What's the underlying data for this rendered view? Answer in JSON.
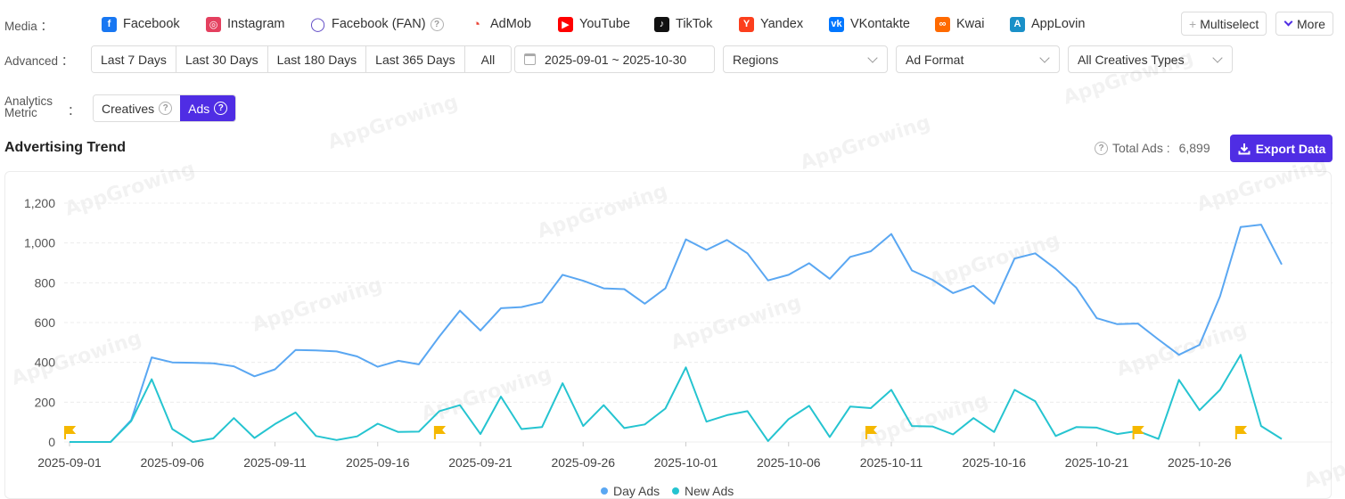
{
  "filters": {
    "media_label": "Media",
    "advanced_label": "Advanced",
    "metric_label_line1": "Analytics",
    "metric_label_line2": "Metric",
    "colon": "：",
    "media": [
      {
        "label": "Facebook",
        "icon": "facebook-icon",
        "color": "#1877f2",
        "glyph": "f"
      },
      {
        "label": "Instagram",
        "icon": "instagram-icon",
        "color": "#e4405f",
        "glyph": "◎"
      },
      {
        "label": "Facebook (FAN)",
        "icon": "facebook-fan-icon",
        "color": "#5b45c4",
        "glyph": "◯"
      },
      {
        "label": "AdMob",
        "icon": "admob-icon",
        "color": "#ea4335",
        "glyph": "◔"
      },
      {
        "label": "YouTube",
        "icon": "youtube-icon",
        "color": "#ff0000",
        "glyph": "▶"
      },
      {
        "label": "TikTok",
        "icon": "tiktok-icon",
        "color": "#111111",
        "glyph": "♪"
      },
      {
        "label": "Yandex",
        "icon": "yandex-icon",
        "color": "#fc3f1d",
        "glyph": "Y"
      },
      {
        "label": "VKontakte",
        "icon": "vkontakte-icon",
        "color": "#0077ff",
        "glyph": "vk"
      },
      {
        "label": "Kwai",
        "icon": "kwai-icon",
        "color": "#ff6a00",
        "glyph": "∞"
      },
      {
        "label": "AppLovin",
        "icon": "applovin-icon",
        "color": "#1a90c8",
        "glyph": "A"
      }
    ],
    "multiselect_label": "Multiselect",
    "more_label": "More",
    "date_ranges": [
      "Last 7 Days",
      "Last 30 Days",
      "Last 180 Days",
      "Last 365 Days",
      "All"
    ],
    "date_picker_value": "2025-09-01 ~ 2025-10-30",
    "regions_placeholder": "Regions",
    "ad_format_placeholder": "Ad Format",
    "creative_types_value": "All Creatives Types",
    "metrics": [
      {
        "label": "Creatives",
        "active": false
      },
      {
        "label": "Ads",
        "active": true
      }
    ]
  },
  "section": {
    "title": "Advertising Trend",
    "total_label": "Total Ads :",
    "total_value": "6,899",
    "export_label": "Export Data"
  },
  "colors": {
    "accent": "#4f2de4",
    "day_ads": "#5aa7f2",
    "new_ads": "#25c4d0",
    "flag": "#f5b800"
  },
  "chart_data": {
    "type": "line",
    "ylim": [
      0,
      1200
    ],
    "yticks": [
      0,
      200,
      400,
      600,
      800,
      1000,
      1200
    ],
    "ytick_labels": [
      "0",
      "200",
      "400",
      "600",
      "800",
      "1,000",
      "1,200"
    ],
    "x_tick_labels": [
      "2025-09-01",
      "2025-09-06",
      "2025-09-11",
      "2025-09-16",
      "2025-09-21",
      "2025-09-26",
      "2025-10-01",
      "2025-10-06",
      "2025-10-11",
      "2025-10-16",
      "2025-10-21",
      "2025-10-26"
    ],
    "legend_position": "bottom",
    "series": [
      {
        "name": "Day Ads",
        "values": [
          0,
          0,
          0,
          110,
          425,
          400,
          398,
          395,
          380,
          330,
          365,
          462,
          460,
          455,
          430,
          378,
          408,
          390,
          530,
          660,
          560,
          672,
          678,
          702,
          840,
          810,
          772,
          768,
          695,
          772,
          1018,
          965,
          1015,
          948,
          812,
          840,
          898,
          820,
          930,
          958,
          1045,
          862,
          815,
          748,
          785,
          695,
          922,
          948,
          870,
          775,
          622,
          592,
          595,
          515,
          438,
          488,
          732,
          1080,
          1092,
          892
        ]
      },
      {
        "name": "New Ads",
        "values": [
          0,
          0,
          0,
          105,
          315,
          65,
          0,
          18,
          120,
          20,
          90,
          148,
          30,
          10,
          28,
          92,
          50,
          52,
          155,
          185,
          40,
          228,
          65,
          75,
          295,
          80,
          185,
          70,
          88,
          168,
          375,
          102,
          135,
          155,
          5,
          115,
          182,
          25,
          178,
          170,
          262,
          80,
          78,
          38,
          120,
          50,
          262,
          205,
          30,
          75,
          72,
          40,
          55,
          15,
          312,
          160,
          262,
          438,
          80,
          15
        ]
      }
    ],
    "flag_markers": [
      "2025-09-01",
      "2025-09-19",
      "2025-10-10",
      "2025-10-23",
      "2025-10-28"
    ]
  }
}
